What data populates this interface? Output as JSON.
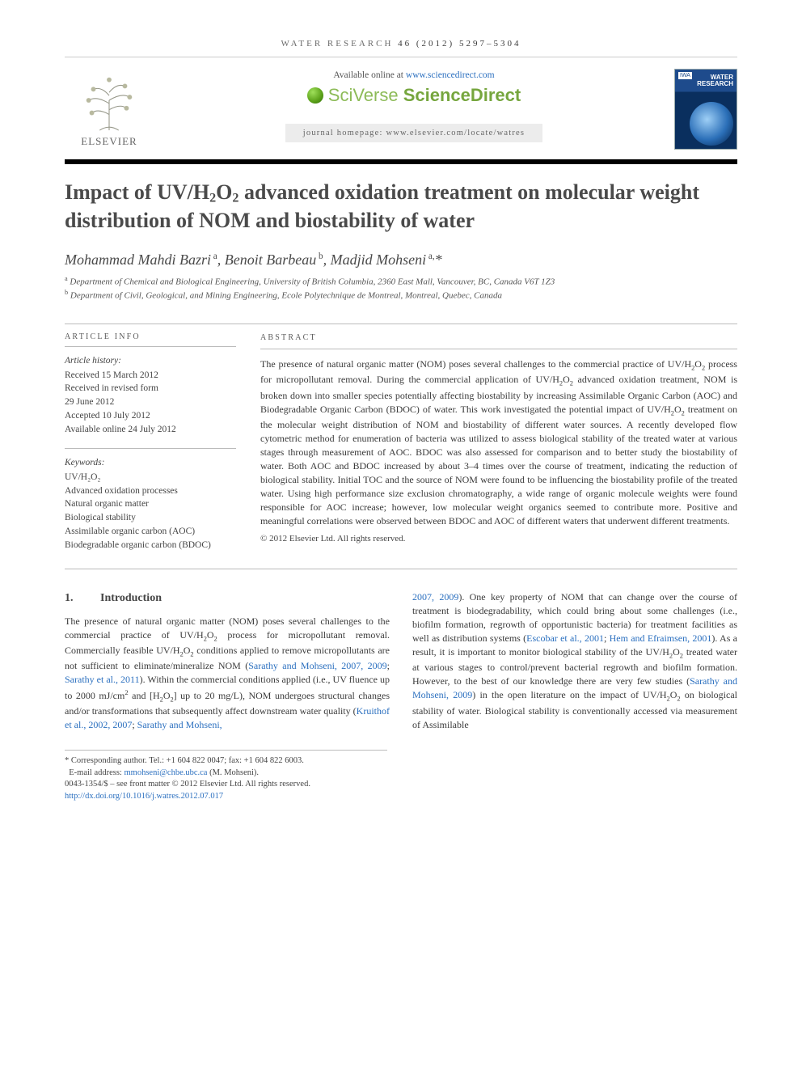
{
  "running_head": {
    "journal": "WATER RESEARCH",
    "citation": "46 (2012) 5297–5304"
  },
  "masthead": {
    "publisher": "ELSEVIER",
    "available_text": "Available online at ",
    "available_url": "www.sciencedirect.com",
    "platform_brand_a": "SciVerse ",
    "platform_brand_b": "ScienceDirect",
    "homepage_label": "journal homepage: www.elsevier.com/locate/watres",
    "cover_iwa": "IWA",
    "cover_title": "WATER\nRESEARCH"
  },
  "title_html": "Impact of UV/H<sub>2</sub>O<sub>2</sub> advanced oxidation treatment on molecular weight distribution of NOM and biostability of water",
  "authors_html": "Mohammad Mahdi Bazri<sup> a</sup>, Benoit Barbeau<sup> b</sup>, Madjid Mohseni<sup> a,</sup>*",
  "affiliations": [
    {
      "mark": "a",
      "text": "Department of Chemical and Biological Engineering, University of British Columbia, 2360 East Mall, Vancouver, BC, Canada V6T 1Z3"
    },
    {
      "mark": "b",
      "text": "Department of Civil, Geological, and Mining Engineering, Ecole Polytechnique de Montreal, Montreal, Quebec, Canada"
    }
  ],
  "article_info": {
    "label": "ARTICLE INFO",
    "history_label": "Article history:",
    "history": [
      "Received 15 March 2012",
      "Received in revised form",
      "29 June 2012",
      "Accepted 10 July 2012",
      "Available online 24 July 2012"
    ],
    "keywords_label": "Keywords:",
    "keywords": [
      "UV/H₂O₂",
      "Advanced oxidation processes",
      "Natural organic matter",
      "Biological stability",
      "Assimilable organic carbon (AOC)",
      "Biodegradable organic carbon (BDOC)"
    ]
  },
  "abstract": {
    "label": "ABSTRACT",
    "text_html": "The presence of natural organic matter (NOM) poses several challenges to the commercial practice of UV/H<sub>2</sub>O<sub>2</sub> process for micropollutant removal. During the commercial application of UV/H<sub>2</sub>O<sub>2</sub> advanced oxidation treatment, NOM is broken down into smaller species potentially affecting biostability by increasing Assimilable Organic Carbon (AOC) and Biodegradable Organic Carbon (BDOC) of water. This work investigated the potential impact of UV/H<sub>2</sub>O<sub>2</sub> treatment on the molecular weight distribution of NOM and biostability of different water sources. A recently developed flow cytometric method for enumeration of bacteria was utilized to assess biological stability of the treated water at various stages through measurement of AOC. BDOC was also assessed for comparison and to better study the biostability of water. Both AOC and BDOC increased by about 3–4 times over the course of treatment, indicating the reduction of biological stability. Initial TOC and the source of NOM were found to be influencing the biostability profile of the treated water. Using high performance size exclusion chromatography, a wide range of organic molecule weights were found responsible for AOC increase; however, low molecular weight organics seemed to contribute more. Positive and meaningful correlations were observed between BDOC and AOC of different waters that underwent different treatments.",
    "copyright": "© 2012 Elsevier Ltd. All rights reserved."
  },
  "intro": {
    "heading_num": "1.",
    "heading": "Introduction",
    "col1_html": "The presence of natural organic matter (NOM) poses several challenges to the commercial practice of UV/H<sub>2</sub>O<sub>2</sub> process for micropollutant removal. Commercially feasible UV/H<sub>2</sub>O<sub>2</sub> conditions applied to remove micropollutants are not sufficient to eliminate/mineralize NOM (<span class=\"ref-link\">Sarathy and Mohseni, 2007, 2009</span>; <span class=\"ref-link\">Sarathy et al., 2011</span>). Within the commercial conditions applied (i.e., UV fluence up to 2000 mJ/cm<sup>2</sup> and [H<sub>2</sub>O<sub>2</sub>] up to 20 mg/L), NOM undergoes structural changes and/or transformations that subsequently affect downstream water quality (<span class=\"ref-link\">Kruithof et al., 2002, 2007</span>; <span class=\"ref-link\">Sarathy and Mohseni,</span>",
    "col2_html": "<span class=\"ref-link\">2007, 2009</span>). One key property of NOM that can change over the course of treatment is biodegradability, which could bring about some challenges (i.e., biofilm formation, regrowth of opportunistic bacteria) for treatment facilities as well as distribution systems (<span class=\"ref-link\">Escobar et al., 2001</span>; <span class=\"ref-link\">Hem and Efraimsen, 2001</span>). As a result, it is important to monitor biological stability of the UV/H<sub>2</sub>O<sub>2</sub> treated water at various stages to control/prevent bacterial regrowth and biofilm formation. However, to the best of our knowledge there are very few studies (<span class=\"ref-link\">Sarathy and Mohseni, 2009</span>) in the open literature on the impact of UV/H<sub>2</sub>O<sub>2</sub> on biological stability of water. Biological stability is conventionally accessed via measurement of Assimilable"
  },
  "footer": {
    "corresponding": "* Corresponding author. Tel.: +1 604 822 0047; fax: +1 604 822 6003.",
    "email_label": "E-mail address: ",
    "email": "mmohseni@chbe.ubc.ca",
    "email_author": " (M. Mohseni).",
    "issn": "0043-1354/$ – see front matter © 2012 Elsevier Ltd. All rights reserved.",
    "doi": "http://dx.doi.org/10.1016/j.watres.2012.07.017"
  },
  "colors": {
    "link": "#2a6fbf",
    "text": "#3a3a3a",
    "rule": "#bbbbbb",
    "sd_green": "#76a63e",
    "cover_blue": "#1e4b8c"
  }
}
